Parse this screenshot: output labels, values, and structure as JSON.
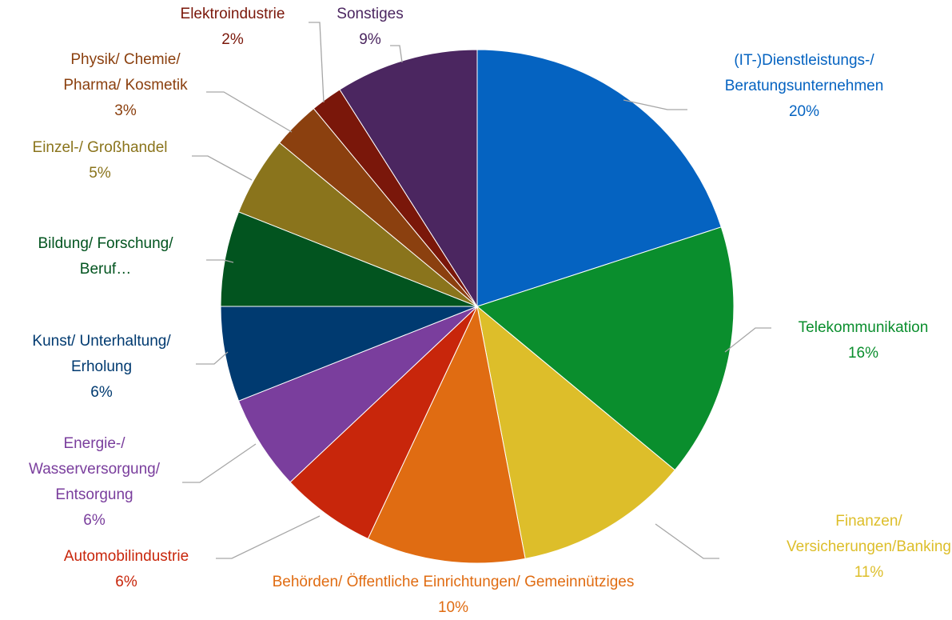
{
  "chart_data": {
    "type": "pie",
    "categories": [
      "(IT-)Dienstleistungs-/ Beratungsunternehmen",
      "Telekommunikation",
      "Finanzen/ Versicherungen/Banking",
      "Behörden/ Öffentliche Einrichtungen/ Gemeinnütziges",
      "Automobilindustrie",
      "Energie-/ Wasserversorgung/ Entsorgung",
      "Kunst/ Unterhaltung/ Erholung",
      "Bildung/ Forschung/ Beruf…",
      "Einzel-/ Großhandel",
      "Physik/ Chemie/ Pharma/ Kosmetik",
      "Elektroindustrie",
      "Sonstiges"
    ],
    "values": [
      20,
      16,
      11,
      10,
      6,
      6,
      6,
      6,
      5,
      3,
      2,
      9
    ],
    "value_labels": [
      "20%",
      "16%",
      "11%",
      "10%",
      "6%",
      "6%",
      "6%",
      null,
      "5%",
      "3%",
      "2%",
      "9%"
    ],
    "colors": [
      "#0563C1",
      "#0A8E2D",
      "#DDBE2A",
      "#E06C12",
      "#C8260B",
      "#7A3E9D",
      "#003A70",
      "#02541F",
      "#8A741C",
      "#8B400F",
      "#7A170A",
      "#4B2660"
    ]
  }
}
